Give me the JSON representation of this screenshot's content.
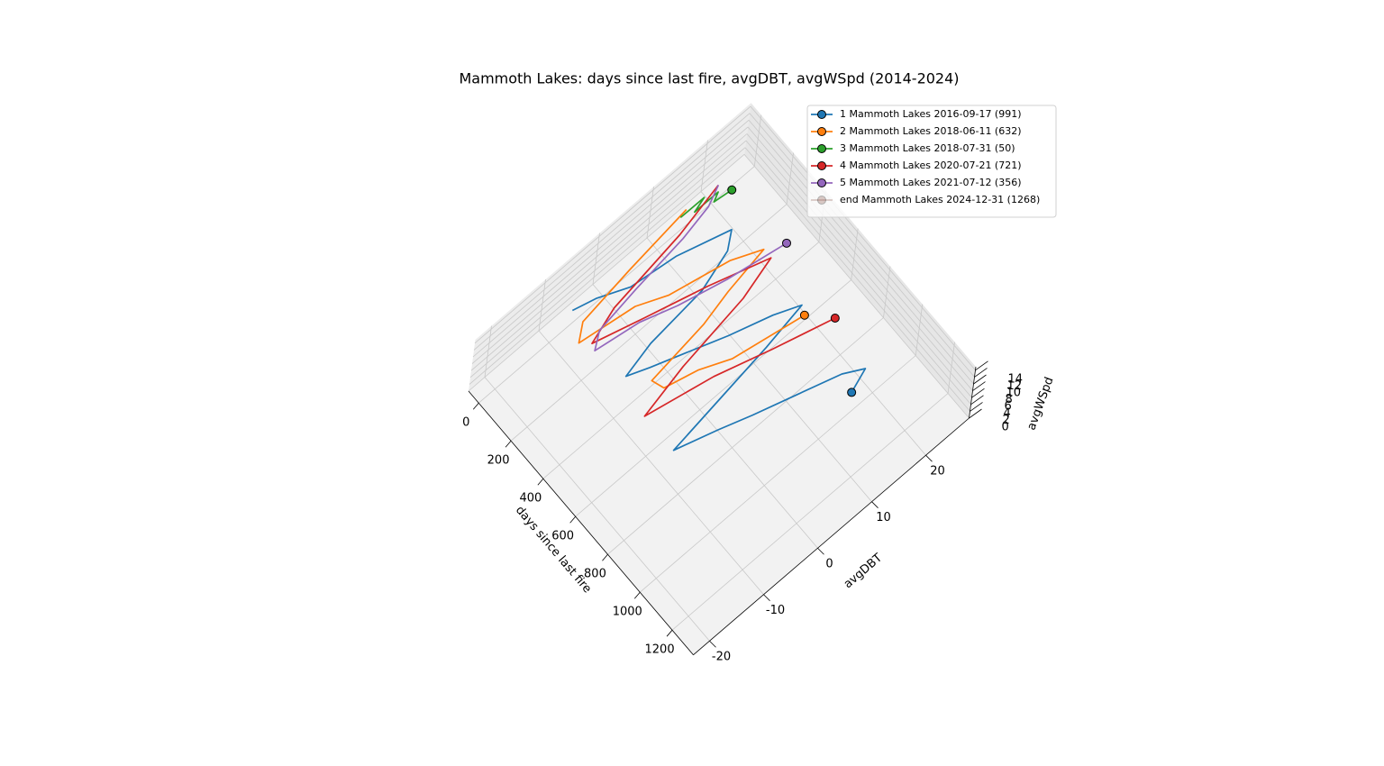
{
  "chart_data": {
    "type": "line3d",
    "title": "Mammoth Lakes: days since last fire, avgDBT, avgWSpd (2014-2024)",
    "xlabel": "days since last fire",
    "ylabel": "avgDBT",
    "zlabel": "avgWSpd",
    "xlim": [
      -63,
      1331
    ],
    "ylim": [
      -23,
      28
    ],
    "zlim": [
      0,
      15
    ],
    "xticks": [
      0,
      200,
      400,
      600,
      800,
      1000,
      1200
    ],
    "yticks": [
      -20,
      -10,
      0,
      10,
      20
    ],
    "zticks": [
      0,
      2,
      4,
      6,
      8,
      10,
      12,
      14
    ],
    "grid": true,
    "legend": "upper right",
    "series": [
      {
        "name": "1 Mammoth Lakes 2016-09-17 (991)",
        "color": "#1f77b4",
        "x": [
          0,
          45,
          90,
          135,
          180,
          225,
          270,
          315,
          360,
          405,
          450,
          495,
          540,
          585,
          630,
          675,
          720,
          765,
          810,
          855,
          900,
          945,
          991
        ],
        "y": [
          -6,
          -3,
          2,
          9,
          18,
          16,
          10,
          -1,
          -7,
          -4,
          2,
          8,
          15,
          19,
          11,
          1,
          -9,
          -2,
          3,
          10,
          17,
          20,
          16
        ],
        "z": [
          4,
          6,
          5,
          7,
          5,
          4,
          3,
          5,
          6,
          7,
          6,
          5,
          4,
          4,
          5,
          6,
          7,
          6,
          6,
          5,
          4,
          4,
          5
        ]
      },
      {
        "name": "2 Mammoth Lakes 2018-06-11 (632)",
        "color": "#ff7f0e",
        "x": [
          0,
          45,
          90,
          135,
          180,
          225,
          270,
          315,
          360,
          405,
          450,
          495,
          540,
          585,
          632
        ],
        "y": [
          15,
          3,
          -7,
          -9,
          0,
          5,
          15,
          20,
          12,
          6,
          -5,
          -4,
          1,
          6,
          18
        ],
        "z": [
          5,
          6,
          7,
          6,
          7,
          6,
          5,
          4,
          5,
          6,
          7,
          6,
          7,
          6,
          5
        ]
      },
      {
        "name": "3 Mammoth Lakes 2018-07-31 (50)",
        "color": "#2ca02c",
        "x": [
          0,
          10,
          20,
          30,
          40,
          50
        ],
        "y": [
          14,
          18,
          16,
          20,
          19,
          22
        ],
        "z": [
          4,
          5,
          4,
          5,
          4,
          4
        ]
      },
      {
        "name": "4 Mammoth Lakes 2020-07-21 (721)",
        "color": "#d62728",
        "x": [
          0,
          60,
          120,
          180,
          240,
          300,
          360,
          420,
          480,
          540,
          600,
          660,
          721
        ],
        "y": [
          21,
          12,
          -2,
          -8,
          0,
          10,
          20,
          13,
          0,
          -9,
          2,
          11,
          21
        ],
        "z": [
          4,
          5,
          6,
          7,
          7,
          6,
          4,
          5,
          6,
          7,
          7,
          6,
          5
        ]
      },
      {
        "name": "5 Mammoth Lakes 2021-07-12 (356)",
        "color": "#9467bd",
        "x": [
          0,
          40,
          80,
          120,
          160,
          200,
          240,
          280,
          320,
          356
        ],
        "y": [
          21,
          18,
          12,
          2,
          -6,
          -8,
          -1,
          5,
          13,
          23
        ],
        "z": [
          4,
          4,
          5,
          6,
          7,
          6,
          7,
          6,
          5,
          4
        ]
      },
      {
        "name": "end Mammoth Lakes 2024-12-31 (1268)",
        "color": "#8c564b",
        "alpha": 0.3
      }
    ]
  }
}
